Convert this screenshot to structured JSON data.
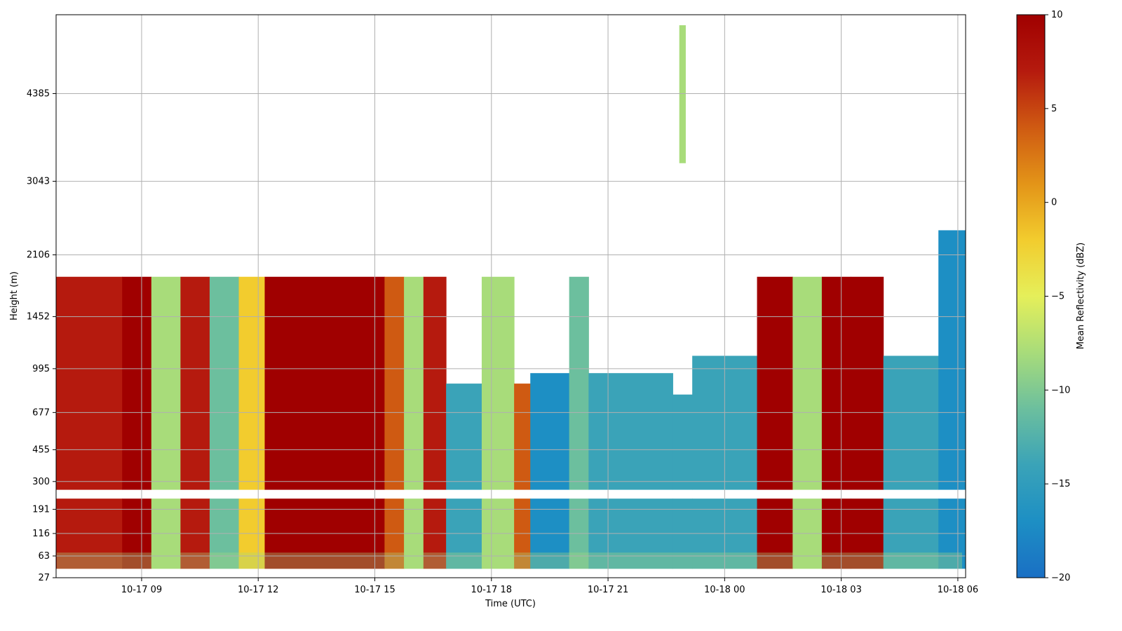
{
  "chart_data": {
    "type": "heatmap",
    "title": "",
    "xlabel": "Time (UTC)",
    "ylabel": "Height (m)",
    "x_range": [
      "2023-10-17 06:48",
      "2023-10-18 06:12"
    ],
    "x_ticks": [
      {
        "time": "2023-10-17 09:00",
        "label": "10-17 09"
      },
      {
        "time": "2023-10-17 12:00",
        "label": "10-17 12"
      },
      {
        "time": "2023-10-17 15:00",
        "label": "10-17 15"
      },
      {
        "time": "2023-10-17 18:00",
        "label": "10-17 18"
      },
      {
        "time": "2023-10-17 21:00",
        "label": "10-17 21"
      },
      {
        "time": "2023-10-18 00:00",
        "label": "10-18 00"
      },
      {
        "time": "2023-10-18 03:00",
        "label": "10-18 03"
      },
      {
        "time": "2023-10-18 06:00",
        "label": "10-18 06"
      }
    ],
    "y_scale": "sqrt",
    "y_range": [
      27,
      5800
    ],
    "y_ticks": [
      27,
      63,
      116,
      191,
      300,
      455,
      677,
      995,
      1452,
      2106,
      3043,
      4385
    ],
    "grid": true,
    "colorbar": {
      "label": "Mean Reflectivity (dBZ)",
      "min": -20,
      "max": 10,
      "ticks": [
        10,
        5,
        0,
        -5,
        -10,
        -15,
        -20
      ],
      "colormap": [
        "#1a6fc4",
        "#1d8fc4",
        "#3aa3b8",
        "#6cbf9e",
        "#a8dc7a",
        "#e5ef5a",
        "#f2cc2e",
        "#e39418",
        "#cf5a12",
        "#b51a0e",
        "#a00000"
      ]
    },
    "height_gap_m": [
      230,
      265
    ],
    "columns": [
      {
        "t0": "2023-10-17 06:48",
        "t1": "2023-10-17 08:30",
        "top_m": 1860,
        "bottom_m": 40,
        "dbz": 7
      },
      {
        "t0": "2023-10-17 08:30",
        "t1": "2023-10-17 09:15",
        "top_m": 1860,
        "bottom_m": 40,
        "dbz": 9
      },
      {
        "t0": "2023-10-17 09:15",
        "t1": "2023-10-17 10:00",
        "top_m": 1860,
        "bottom_m": 40,
        "dbz": -7
      },
      {
        "t0": "2023-10-17 10:00",
        "t1": "2023-10-17 10:45",
        "top_m": 1860,
        "bottom_m": 40,
        "dbz": 6
      },
      {
        "t0": "2023-10-17 10:45",
        "t1": "2023-10-17 11:30",
        "top_m": 1860,
        "bottom_m": 40,
        "dbz": -10
      },
      {
        "t0": "2023-10-17 11:30",
        "t1": "2023-10-17 12:10",
        "top_m": 1860,
        "bottom_m": 40,
        "dbz": -3
      },
      {
        "t0": "2023-10-17 12:10",
        "t1": "2023-10-17 15:15",
        "top_m": 1860,
        "bottom_m": 40,
        "dbz": 10
      },
      {
        "t0": "2023-10-17 15:15",
        "t1": "2023-10-17 15:45",
        "top_m": 1860,
        "bottom_m": 40,
        "dbz": 3
      },
      {
        "t0": "2023-10-17 15:45",
        "t1": "2023-10-17 16:15",
        "top_m": 1860,
        "bottom_m": 40,
        "dbz": -9
      },
      {
        "t0": "2023-10-17 16:15",
        "t1": "2023-10-17 16:50",
        "top_m": 1860,
        "bottom_m": 40,
        "dbz": 8
      },
      {
        "t0": "2023-10-17 16:50",
        "t1": "2023-10-17 17:45",
        "top_m": 880,
        "bottom_m": 40,
        "dbz": -15
      },
      {
        "t0": "2023-10-17 17:45",
        "t1": "2023-10-17 18:35",
        "top_m": 1860,
        "bottom_m": 40,
        "dbz": -8
      },
      {
        "t0": "2023-10-17 18:35",
        "t1": "2023-10-17 19:00",
        "top_m": 880,
        "bottom_m": 40,
        "dbz": 4
      },
      {
        "t0": "2023-10-17 19:00",
        "t1": "2023-10-17 20:00",
        "top_m": 960,
        "bottom_m": 40,
        "dbz": -16
      },
      {
        "t0": "2023-10-17 20:00",
        "t1": "2023-10-17 20:30",
        "top_m": 1860,
        "bottom_m": 40,
        "dbz": -10
      },
      {
        "t0": "2023-10-17 20:30",
        "t1": "2023-10-17 22:40",
        "top_m": 960,
        "bottom_m": 40,
        "dbz": -15
      },
      {
        "t0": "2023-10-17 22:40",
        "t1": "2023-10-17 23:10",
        "top_m": 800,
        "bottom_m": 40,
        "dbz": -14
      },
      {
        "t0": "2023-10-17 23:10",
        "t1": "2023-10-18 00:50",
        "top_m": 1100,
        "bottom_m": 40,
        "dbz": -15
      },
      {
        "t0": "2023-10-18 00:50",
        "t1": "2023-10-18 01:45",
        "top_m": 1860,
        "bottom_m": 40,
        "dbz": 10
      },
      {
        "t0": "2023-10-18 01:45",
        "t1": "2023-10-18 02:30",
        "top_m": 1860,
        "bottom_m": 40,
        "dbz": -9
      },
      {
        "t0": "2023-10-18 02:30",
        "t1": "2023-10-18 03:15",
        "top_m": 1860,
        "bottom_m": 40,
        "dbz": 10
      },
      {
        "t0": "2023-10-18 03:15",
        "t1": "2023-10-18 04:05",
        "top_m": 1860,
        "bottom_m": 40,
        "dbz": 9
      },
      {
        "t0": "2023-10-18 04:05",
        "t1": "2023-10-18 05:30",
        "top_m": 1100,
        "bottom_m": 40,
        "dbz": -13
      },
      {
        "t0": "2023-10-18 05:30",
        "t1": "2023-10-18 06:12",
        "top_m": 2400,
        "bottom_m": 40,
        "dbz": -17
      }
    ],
    "elevated_echo": {
      "t0": "2023-10-17 22:50",
      "t1": "2023-10-17 23:00",
      "top_m": 5600,
      "bottom_m": 3300,
      "dbz": -8
    },
    "surface_layer": {
      "top_m": 70,
      "bottom_m": 40,
      "dbz": -8
    }
  }
}
